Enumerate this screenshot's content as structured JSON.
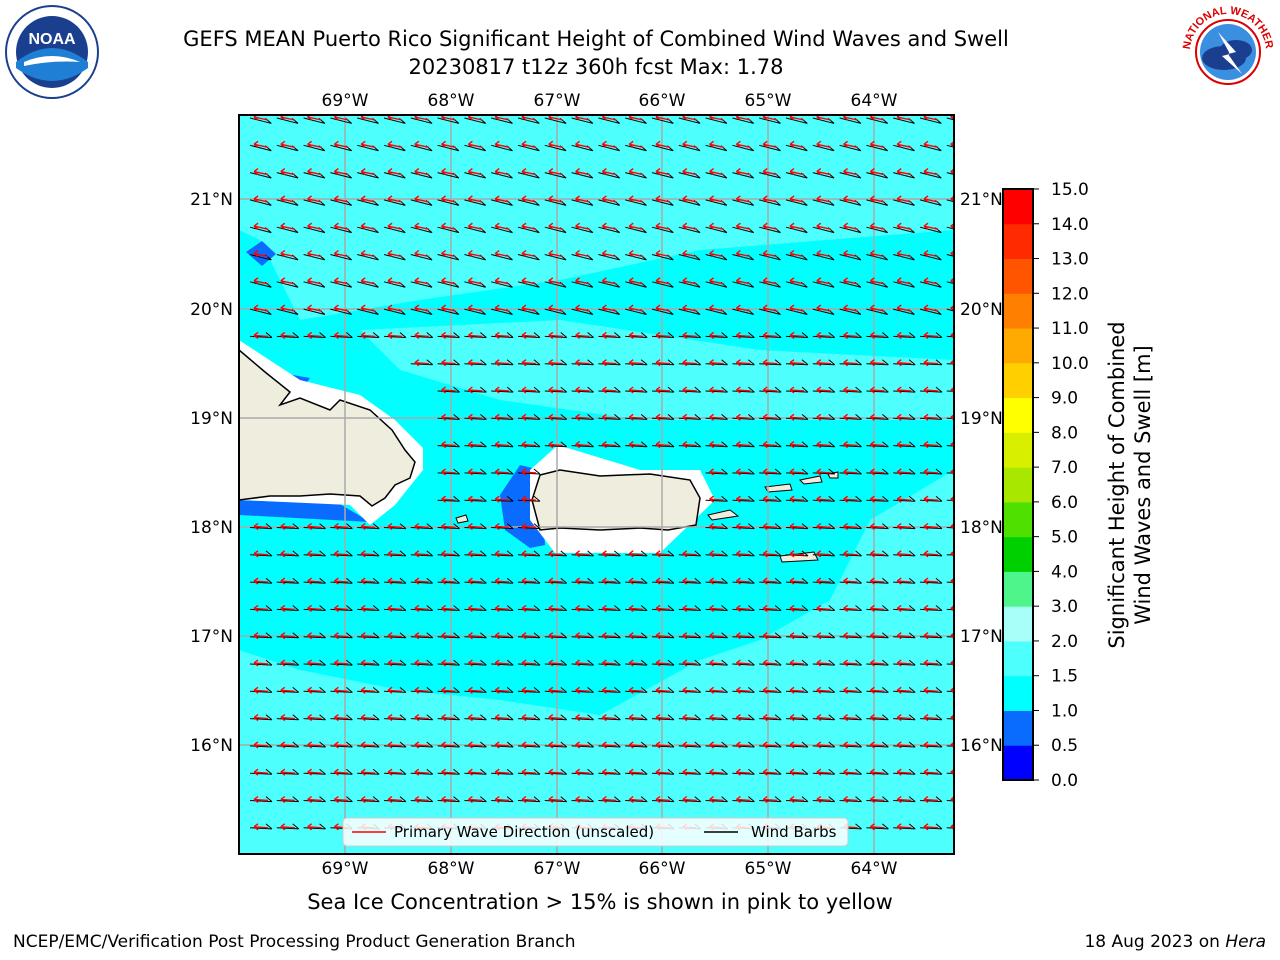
{
  "title_line1": "GEFS MEAN Puerto Rico Significant Height of Combined Wind Waves and Swell",
  "title_line2": "20230817 t12z 360h fcst   Max: 1.78",
  "left_logo": {
    "icon": "noaa-logo",
    "text": "NOAA"
  },
  "right_logo": {
    "icon": "nws-logo",
    "text": "NATIONAL WEATHER SERVICE"
  },
  "lon_labels": [
    "69°W",
    "68°W",
    "67°W",
    "66°W",
    "65°W",
    "64°W"
  ],
  "lat_labels": [
    "21°N",
    "20°N",
    "19°N",
    "18°N",
    "17°N",
    "16°N"
  ],
  "legend": {
    "wave_dir": "Primary Wave Direction (unscaled)",
    "wind_barbs": "Wind Barbs"
  },
  "colorbar": {
    "label_line1": "Significant Height of Combined",
    "label_line2": "Wind Waves and Swell [m]",
    "ticks": [
      "0.0",
      "0.5",
      "1.0",
      "1.5",
      "2.0",
      "3.0",
      "4.0",
      "5.0",
      "6.0",
      "7.0",
      "8.0",
      "9.0",
      "10.0",
      "11.0",
      "12.0",
      "13.0",
      "14.0",
      "15.0"
    ],
    "colors": [
      "#0000ff",
      "#0a6cff",
      "#00ffff",
      "#4dfffd",
      "#a8fff9",
      "#4df58a",
      "#00d000",
      "#50e000",
      "#a8e800",
      "#d8f000",
      "#ffff00",
      "#ffd000",
      "#ffaa00",
      "#ff8000",
      "#ff5500",
      "#ff2a00",
      "#ff0000"
    ]
  },
  "subnote": "Sea Ice Concentration > 15% is shown in pink to yellow",
  "footer_left": "NCEP/EMC/Verification Post Processing Product Generation Branch",
  "footer_right_date": "18 Aug 2023 on",
  "footer_right_host": "Hera"
}
